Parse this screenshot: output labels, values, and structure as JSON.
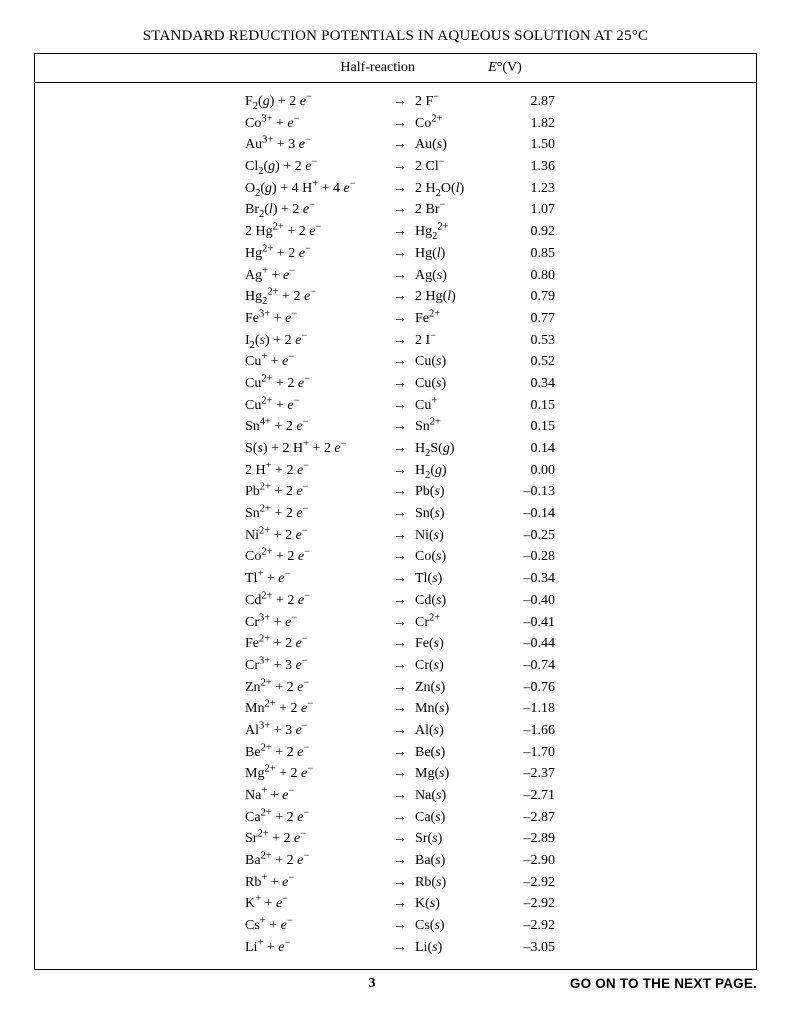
{
  "title": "STANDARD REDUCTION POTENTIALS IN AQUEOUS SOLUTION AT 25°C",
  "headers": {
    "reaction": "Half-reaction",
    "potential_html": "<span class='ital'>E</span>°(V)"
  },
  "arrow": "→",
  "page_number": "3",
  "go_on": "GO ON TO THE NEXT PAGE.",
  "rows": [
    {
      "left": "F<sub>2</sub>(<span class='ital'>g</span>) + 2 <span class='ital'>e</span><sup>−</sup>",
      "right": "2 F<sup>−</sup>",
      "pot": "2.87"
    },
    {
      "left": "Co<sup>3+</sup> + <span class='ital'>e</span><sup>−</sup>",
      "right": "Co<sup>2+</sup>",
      "pot": "1.82"
    },
    {
      "left": "Au<sup>3+</sup> + 3 <span class='ital'>e</span><sup>−</sup>",
      "right": "Au(<span class='ital'>s</span>)",
      "pot": "1.50"
    },
    {
      "left": "Cl<sub>2</sub>(<span class='ital'>g</span>) + 2 <span class='ital'>e</span><sup>−</sup>",
      "right": "2 Cl<sup>−</sup>",
      "pot": "1.36"
    },
    {
      "left": "O<sub>2</sub>(<span class='ital'>g</span>) + 4 H<sup>+</sup> + 4 <span class='ital'>e</span><sup>−</sup>",
      "right": "2 H<sub>2</sub>O(<span class='ital'>l</span>)",
      "pot": "1.23"
    },
    {
      "left": "Br<sub>2</sub>(<span class='ital'>l</span>) + 2 <span class='ital'>e</span><sup>−</sup>",
      "right": "2 Br<sup>−</sup>",
      "pot": "1.07"
    },
    {
      "left": "2 Hg<sup>2+</sup> + 2 <span class='ital'>e</span><sup>−</sup>",
      "right": "Hg<sub>2</sub><sup>2+</sup>",
      "pot": "0.92"
    },
    {
      "left": "Hg<sup>2+</sup> + 2 <span class='ital'>e</span><sup>−</sup>",
      "right": "Hg(<span class='ital'>l</span>)",
      "pot": "0.85"
    },
    {
      "left": "Ag<sup>+</sup> + <span class='ital'>e</span><sup>−</sup>",
      "right": "Ag(<span class='ital'>s</span>)",
      "pot": "0.80"
    },
    {
      "left": "Hg<sub>2</sub><sup>2+</sup> + 2 <span class='ital'>e</span><sup>−</sup>",
      "right": "2 Hg(<span class='ital'>l</span>)",
      "pot": "0.79"
    },
    {
      "left": "Fe<sup>3+</sup> + <span class='ital'>e</span><sup>−</sup>",
      "right": "Fe<sup>2+</sup>",
      "pot": "0.77"
    },
    {
      "left": "I<sub>2</sub>(<span class='ital'>s</span>) + 2 <span class='ital'>e</span><sup>−</sup>",
      "right": "2 I<sup>−</sup>",
      "pot": "0.53"
    },
    {
      "left": "Cu<sup>+</sup> + <span class='ital'>e</span><sup>−</sup>",
      "right": "Cu(<span class='ital'>s</span>)",
      "pot": "0.52"
    },
    {
      "left": "Cu<sup>2+</sup> + 2 <span class='ital'>e</span><sup>−</sup>",
      "right": "Cu(<span class='ital'>s</span>)",
      "pot": "0.34"
    },
    {
      "left": "Cu<sup>2+</sup> + <span class='ital'>e</span><sup>−</sup>",
      "right": "Cu<sup>+</sup>",
      "pot": "0.15"
    },
    {
      "left": "Sn<sup>4+</sup> + 2 <span class='ital'>e</span><sup>−</sup>",
      "right": "Sn<sup>2+</sup>",
      "pot": "0.15"
    },
    {
      "left": "S(<span class='ital'>s</span>) + 2 H<sup>+</sup> + 2 <span class='ital'>e</span><sup>−</sup>",
      "right": "H<sub>2</sub>S(<span class='ital'>g</span>)",
      "pot": "0.14"
    },
    {
      "left": "2 H<sup>+</sup> + 2 <span class='ital'>e</span><sup>−</sup>",
      "right": "H<sub>2</sub>(<span class='ital'>g</span>)",
      "pot": "0.00"
    },
    {
      "left": "Pb<sup>2+</sup> + 2 <span class='ital'>e</span><sup>−</sup>",
      "right": "Pb(<span class='ital'>s</span>)",
      "pot": "–0.13"
    },
    {
      "left": "Sn<sup>2+</sup> + 2 <span class='ital'>e</span><sup>−</sup>",
      "right": "Sn(<span class='ital'>s</span>)",
      "pot": "–0.14"
    },
    {
      "left": "Ni<sup>2+</sup> + 2 <span class='ital'>e</span><sup>−</sup>",
      "right": "Ni(<span class='ital'>s</span>)",
      "pot": "–0.25"
    },
    {
      "left": "Co<sup>2+</sup> + 2 <span class='ital'>e</span><sup>−</sup>",
      "right": "Co(<span class='ital'>s</span>)",
      "pot": "–0.28"
    },
    {
      "left": "Tl<sup>+</sup> + <span class='ital'>e</span><sup>−</sup>",
      "right": "Tl(<span class='ital'>s</span>)",
      "pot": "–0.34"
    },
    {
      "left": "Cd<sup>2+</sup> + 2 <span class='ital'>e</span><sup>−</sup>",
      "right": "Cd(<span class='ital'>s</span>)",
      "pot": "–0.40"
    },
    {
      "left": "Cr<sup>3+</sup> + <span class='ital'>e</span><sup>−</sup>",
      "right": "Cr<sup>2+</sup>",
      "pot": "–0.41"
    },
    {
      "left": "Fe<sup>2+</sup> + 2 <span class='ital'>e</span><sup>−</sup>",
      "right": "Fe(<span class='ital'>s</span>)",
      "pot": "–0.44"
    },
    {
      "left": "Cr<sup>3+</sup> + 3 <span class='ital'>e</span><sup>−</sup>",
      "right": "Cr(<span class='ital'>s</span>)",
      "pot": "–0.74"
    },
    {
      "left": "Zn<sup>2+</sup> + 2 <span class='ital'>e</span><sup>−</sup>",
      "right": "Zn(<span class='ital'>s</span>)",
      "pot": "–0.76"
    },
    {
      "left": "Mn<sup>2+</sup> + 2 <span class='ital'>e</span><sup>−</sup>",
      "right": "Mn(<span class='ital'>s</span>)",
      "pot": "–1.18"
    },
    {
      "left": "Al<sup>3+</sup> + 3 <span class='ital'>e</span><sup>−</sup>",
      "right": "Al(<span class='ital'>s</span>)",
      "pot": "–1.66"
    },
    {
      "left": "Be<sup>2+</sup> + 2 <span class='ital'>e</span><sup>−</sup>",
      "right": "Be(<span class='ital'>s</span>)",
      "pot": "–1.70"
    },
    {
      "left": "Mg<sup>2+</sup> + 2 <span class='ital'>e</span><sup>−</sup>",
      "right": "Mg(<span class='ital'>s</span>)",
      "pot": "–2.37"
    },
    {
      "left": "Na<sup>+</sup> + <span class='ital'>e</span><sup>−</sup>",
      "right": "Na(<span class='ital'>s</span>)",
      "pot": "–2.71"
    },
    {
      "left": "Ca<sup>2+</sup> + 2 <span class='ital'>e</span><sup>−</sup>",
      "right": "Ca(<span class='ital'>s</span>)",
      "pot": "–2.87"
    },
    {
      "left": "Sr<sup>2+</sup> + 2 <span class='ital'>e</span><sup>−</sup>",
      "right": "Sr(<span class='ital'>s</span>)",
      "pot": "–2.89"
    },
    {
      "left": "Ba<sup>2+</sup> + 2 <span class='ital'>e</span><sup>−</sup>",
      "right": "Ba(<span class='ital'>s</span>)",
      "pot": "–2.90"
    },
    {
      "left": "Rb<sup>+</sup> + <span class='ital'>e</span><sup>−</sup>",
      "right": "Rb(<span class='ital'>s</span>)",
      "pot": "–2.92"
    },
    {
      "left": "K<sup>+</sup> + <span class='ital'>e</span><sup>−</sup>",
      "right": "K(<span class='ital'>s</span>)",
      "pot": "–2.92"
    },
    {
      "left": "Cs<sup>+</sup> + <span class='ital'>e</span><sup>−</sup>",
      "right": "Cs(<span class='ital'>s</span>)",
      "pot": "–2.92"
    },
    {
      "left": "Li<sup>+</sup> + <span class='ital'>e</span><sup>−</sup>",
      "right": "Li(<span class='ital'>s</span>)",
      "pot": "–3.05"
    }
  ]
}
